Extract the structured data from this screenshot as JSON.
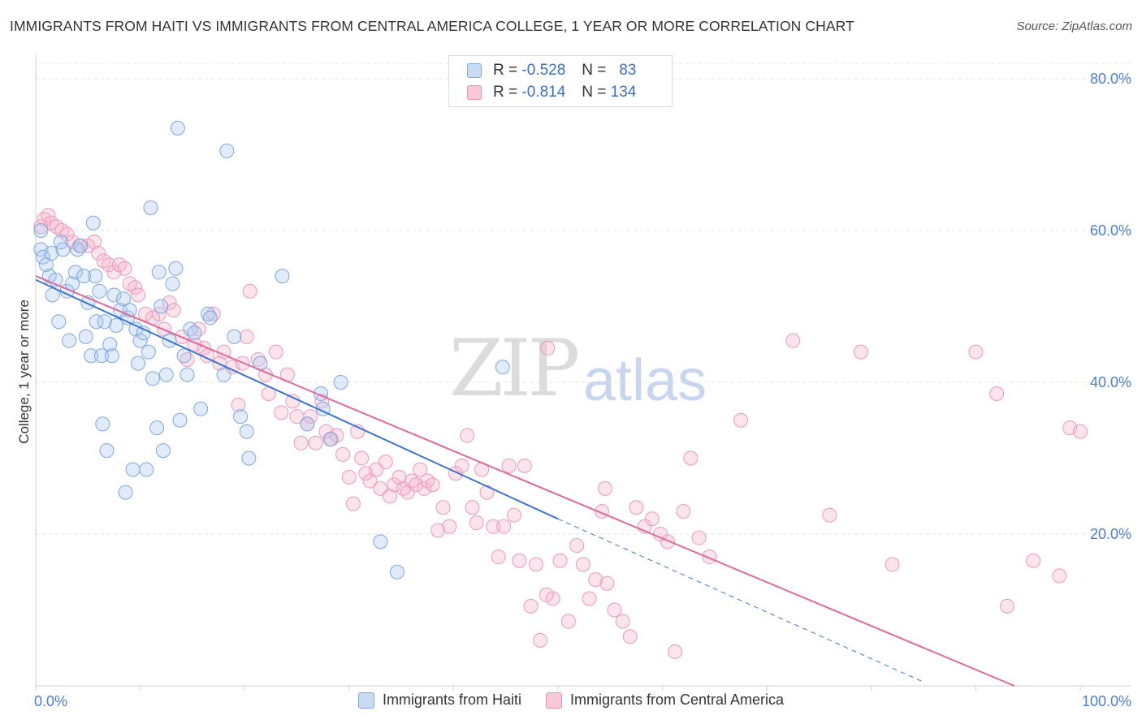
{
  "title": "IMMIGRANTS FROM HAITI VS IMMIGRANTS FROM CENTRAL AMERICA COLLEGE, 1 YEAR OR MORE CORRELATION CHART",
  "source": "Source: ZipAtlas.com",
  "watermark": {
    "zip": "ZIP",
    "atlas": "atlas"
  },
  "legend": {
    "rows": [
      {
        "r_label": "R =",
        "r_value": "-0.528",
        "n_label": "N =",
        "n_value": "83",
        "color": "#a8c8f0"
      },
      {
        "r_label": "R =",
        "r_value": "-0.814",
        "n_label": "N =",
        "n_value": "134",
        "color": "#f5b3c8"
      }
    ]
  },
  "bottom_legend": [
    {
      "label": "Immigrants from Haiti",
      "color": "#a8c8f0"
    },
    {
      "label": "Immigrants from Central America",
      "color": "#f5b3c8"
    }
  ],
  "chart_data": {
    "type": "scatter",
    "title": "IMMIGRANTS FROM HAITI VS IMMIGRANTS FROM CENTRAL AMERICA COLLEGE, 1 YEAR OR MORE CORRELATION CHART",
    "xlabel": "",
    "ylabel": "College, 1 year or more",
    "xlim": [
      0,
      100
    ],
    "ylim": [
      0,
      82
    ],
    "x_tick_labels": [
      "0.0%",
      "100.0%"
    ],
    "y_ticks": [
      20,
      40,
      60,
      80
    ],
    "y_tick_labels": [
      "20.0%",
      "40.0%",
      "60.0%",
      "80.0%"
    ],
    "grid": true,
    "colors": {
      "haiti": "#a8c8f0",
      "haiti_line": "#3b74d1",
      "central_america": "#f5b3c8",
      "central_america_line": "#e0699a"
    },
    "series": [
      {
        "name": "Immigrants from Haiti",
        "trend": {
          "x": [
            0,
            50
          ],
          "y": [
            53.5,
            22.0
          ],
          "dashed_to_x": 85,
          "dashed_to_y": 0.5
        },
        "points": [
          [
            0.5,
            60.0
          ],
          [
            0.5,
            57.5
          ],
          [
            0.7,
            56.5
          ],
          [
            1.0,
            55.5
          ],
          [
            1.3,
            54.0
          ],
          [
            1.5,
            57.0
          ],
          [
            1.6,
            51.5
          ],
          [
            1.9,
            53.5
          ],
          [
            2.2,
            48.0
          ],
          [
            2.4,
            58.5
          ],
          [
            2.6,
            57.5
          ],
          [
            3.0,
            52.0
          ],
          [
            3.2,
            45.5
          ],
          [
            3.5,
            53.0
          ],
          [
            3.8,
            54.5
          ],
          [
            4.0,
            57.5
          ],
          [
            4.3,
            58.0
          ],
          [
            4.6,
            54.0
          ],
          [
            4.8,
            46.0
          ],
          [
            5.0,
            50.5
          ],
          [
            5.3,
            43.5
          ],
          [
            5.5,
            61.0
          ],
          [
            5.7,
            54.0
          ],
          [
            5.8,
            48.0
          ],
          [
            6.1,
            52.0
          ],
          [
            6.3,
            43.5
          ],
          [
            6.4,
            34.5
          ],
          [
            6.6,
            48.0
          ],
          [
            6.8,
            31.0
          ],
          [
            7.1,
            45.0
          ],
          [
            7.3,
            43.5
          ],
          [
            7.5,
            51.5
          ],
          [
            7.7,
            47.5
          ],
          [
            8.1,
            49.5
          ],
          [
            8.4,
            51.0
          ],
          [
            8.6,
            25.5
          ],
          [
            8.8,
            48.5
          ],
          [
            9.0,
            49.5
          ],
          [
            9.3,
            28.5
          ],
          [
            9.6,
            47.0
          ],
          [
            9.8,
            42.5
          ],
          [
            10.0,
            45.5
          ],
          [
            10.3,
            46.5
          ],
          [
            10.6,
            28.5
          ],
          [
            10.8,
            44.0
          ],
          [
            11.0,
            63.0
          ],
          [
            11.2,
            40.5
          ],
          [
            11.6,
            34.0
          ],
          [
            11.8,
            54.5
          ],
          [
            12.0,
            50.0
          ],
          [
            12.2,
            31.0
          ],
          [
            12.5,
            41.0
          ],
          [
            12.8,
            45.5
          ],
          [
            13.1,
            53.0
          ],
          [
            13.4,
            55.0
          ],
          [
            13.6,
            73.5
          ],
          [
            13.8,
            35.0
          ],
          [
            14.2,
            43.5
          ],
          [
            14.5,
            41.0
          ],
          [
            14.8,
            47.0
          ],
          [
            15.2,
            46.5
          ],
          [
            15.8,
            36.5
          ],
          [
            16.5,
            49.0
          ],
          [
            16.7,
            48.5
          ],
          [
            18.0,
            41.0
          ],
          [
            18.3,
            70.5
          ],
          [
            19.0,
            46.0
          ],
          [
            19.6,
            35.5
          ],
          [
            20.2,
            33.5
          ],
          [
            20.4,
            30.0
          ],
          [
            21.5,
            42.5
          ],
          [
            23.6,
            54.0
          ],
          [
            26.0,
            34.5
          ],
          [
            27.3,
            38.5
          ],
          [
            27.5,
            36.5
          ],
          [
            28.2,
            32.5
          ],
          [
            29.2,
            40.0
          ],
          [
            33.0,
            19.0
          ],
          [
            34.6,
            15.0
          ],
          [
            44.7,
            42.0
          ]
        ]
      },
      {
        "name": "Immigrants from Central America",
        "trend": {
          "x": [
            0,
            93.7
          ],
          "y": [
            54.0,
            0.0
          ]
        },
        "points": [
          [
            0.5,
            60.5
          ],
          [
            0.8,
            61.5
          ],
          [
            1.2,
            62.0
          ],
          [
            1.5,
            61.0
          ],
          [
            2.0,
            60.5
          ],
          [
            2.5,
            60.0
          ],
          [
            3.0,
            59.5
          ],
          [
            3.5,
            58.5
          ],
          [
            4.2,
            58.0
          ],
          [
            5.0,
            58.0
          ],
          [
            5.6,
            58.5
          ],
          [
            6.0,
            57.0
          ],
          [
            6.5,
            56.0
          ],
          [
            7.0,
            55.5
          ],
          [
            7.5,
            54.5
          ],
          [
            8.0,
            55.5
          ],
          [
            8.5,
            55.0
          ],
          [
            9.0,
            53.0
          ],
          [
            9.5,
            52.5
          ],
          [
            9.8,
            51.5
          ],
          [
            10.5,
            49.0
          ],
          [
            11.2,
            48.5
          ],
          [
            11.8,
            49.0
          ],
          [
            12.3,
            47.0
          ],
          [
            12.8,
            50.5
          ],
          [
            13.2,
            49.5
          ],
          [
            14.0,
            46.0
          ],
          [
            14.5,
            43.0
          ],
          [
            15.2,
            45.0
          ],
          [
            15.6,
            47.0
          ],
          [
            16.1,
            44.5
          ],
          [
            16.4,
            43.5
          ],
          [
            17.0,
            49.0
          ],
          [
            17.6,
            42.5
          ],
          [
            18.0,
            44.0
          ],
          [
            18.8,
            42.0
          ],
          [
            19.4,
            37.0
          ],
          [
            19.8,
            42.5
          ],
          [
            20.2,
            46.0
          ],
          [
            20.5,
            52.0
          ],
          [
            21.3,
            43.0
          ],
          [
            22.0,
            41.0
          ],
          [
            22.3,
            38.5
          ],
          [
            23.0,
            44.0
          ],
          [
            23.5,
            36.0
          ],
          [
            24.1,
            41.0
          ],
          [
            24.6,
            37.5
          ],
          [
            25.0,
            35.5
          ],
          [
            25.4,
            32.0
          ],
          [
            26.0,
            34.5
          ],
          [
            26.3,
            35.5
          ],
          [
            26.8,
            32.0
          ],
          [
            27.4,
            37.5
          ],
          [
            27.8,
            33.5
          ],
          [
            28.3,
            32.5
          ],
          [
            28.8,
            33.0
          ],
          [
            29.4,
            30.5
          ],
          [
            30.0,
            27.5
          ],
          [
            30.4,
            24.0
          ],
          [
            30.8,
            33.5
          ],
          [
            31.2,
            30.0
          ],
          [
            31.6,
            28.0
          ],
          [
            32.0,
            27.0
          ],
          [
            32.6,
            28.5
          ],
          [
            33.0,
            26.0
          ],
          [
            33.5,
            29.5
          ],
          [
            33.9,
            25.0
          ],
          [
            34.3,
            26.5
          ],
          [
            34.8,
            27.5
          ],
          [
            35.2,
            26.0
          ],
          [
            35.6,
            25.5
          ],
          [
            36.0,
            27.0
          ],
          [
            36.4,
            26.5
          ],
          [
            36.8,
            28.5
          ],
          [
            37.2,
            26.0
          ],
          [
            37.5,
            27.0
          ],
          [
            38.0,
            26.5
          ],
          [
            38.5,
            20.5
          ],
          [
            39.0,
            23.5
          ],
          [
            39.6,
            21.0
          ],
          [
            40.2,
            28.0
          ],
          [
            40.8,
            29.0
          ],
          [
            41.3,
            33.0
          ],
          [
            41.8,
            23.5
          ],
          [
            42.2,
            21.5
          ],
          [
            42.7,
            28.5
          ],
          [
            43.2,
            25.5
          ],
          [
            43.8,
            21.0
          ],
          [
            44.3,
            17.0
          ],
          [
            44.8,
            21.0
          ],
          [
            45.3,
            29.0
          ],
          [
            45.8,
            22.5
          ],
          [
            46.3,
            16.5
          ],
          [
            46.8,
            29.0
          ],
          [
            47.4,
            10.5
          ],
          [
            47.9,
            16.0
          ],
          [
            48.3,
            6.0
          ],
          [
            48.9,
            12.0
          ],
          [
            49.5,
            11.5
          ],
          [
            50.2,
            16.5
          ],
          [
            51.0,
            8.5
          ],
          [
            51.8,
            18.5
          ],
          [
            52.4,
            16.0
          ],
          [
            53.0,
            11.5
          ],
          [
            53.6,
            14.0
          ],
          [
            54.2,
            23.0
          ],
          [
            54.7,
            13.5
          ],
          [
            55.4,
            10.0
          ],
          [
            56.2,
            8.5
          ],
          [
            56.9,
            6.5
          ],
          [
            57.5,
            23.5
          ],
          [
            58.3,
            21.0
          ],
          [
            59.0,
            22.0
          ],
          [
            59.8,
            20.0
          ],
          [
            60.5,
            19.0
          ],
          [
            61.2,
            4.5
          ],
          [
            62.0,
            23.0
          ],
          [
            62.7,
            30.0
          ],
          [
            63.5,
            19.5
          ],
          [
            64.5,
            17.0
          ],
          [
            67.5,
            35.0
          ],
          [
            72.5,
            45.5
          ],
          [
            76.0,
            22.5
          ],
          [
            79.0,
            44.0
          ],
          [
            82.0,
            16.0
          ],
          [
            90.0,
            44.0
          ],
          [
            92.0,
            38.5
          ],
          [
            93.0,
            10.5
          ],
          [
            95.5,
            16.5
          ],
          [
            98.0,
            14.5
          ],
          [
            99.0,
            34.0
          ],
          [
            100.0,
            33.5
          ],
          [
            54.5,
            26.0
          ],
          [
            49.0,
            44.5
          ]
        ]
      }
    ]
  }
}
